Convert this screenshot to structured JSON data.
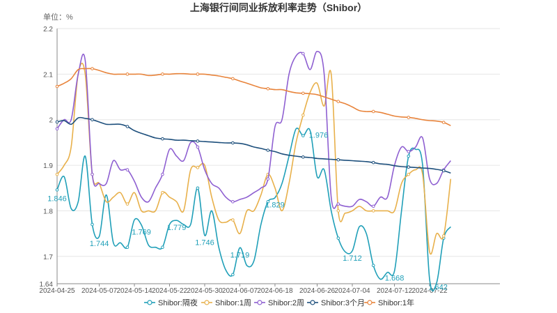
{
  "chart_data": {
    "type": "line",
    "title": "上海银行间同业拆放利率走势（Shibor）",
    "unit_label": "单位：%",
    "ylim": [
      1.64,
      2.2
    ],
    "yticks": [
      "2.2",
      "2.1",
      "2",
      "1.9",
      "1.8",
      "1.7",
      "1.64"
    ],
    "xlim": [
      0,
      63
    ],
    "xticks": [
      {
        "i": 0,
        "label": "2024-04-25"
      },
      {
        "i": 6,
        "label": "2024-05-07"
      },
      {
        "i": 11,
        "label": "2024-05-14"
      },
      {
        "i": 16,
        "label": "2024-05-22"
      },
      {
        "i": 21,
        "label": "2024-05-30"
      },
      {
        "i": 26,
        "label": "2024-06-07"
      },
      {
        "i": 31,
        "label": "2024-06-18"
      },
      {
        "i": 37,
        "label": "2024-06-26"
      },
      {
        "i": 42,
        "label": "2024-07-04"
      },
      {
        "i": 48,
        "label": "2024-07-12"
      },
      {
        "i": 53,
        "label": "2024-07-22"
      }
    ],
    "grid": true,
    "legend_position": "bottom",
    "series": [
      {
        "name": "Shibor:隔夜",
        "color": "#1f9fb8",
        "points": [
          [
            0,
            1.846
          ],
          [
            1,
            1.875
          ],
          [
            2,
            1.805
          ],
          [
            3,
            1.82
          ],
          [
            4,
            1.92
          ],
          [
            5,
            1.77
          ],
          [
            6,
            1.744
          ],
          [
            7,
            1.835
          ],
          [
            8,
            1.73
          ],
          [
            9,
            1.73
          ],
          [
            10,
            1.72
          ],
          [
            11,
            1.78
          ],
          [
            12,
            1.769
          ],
          [
            13,
            1.725
          ],
          [
            14,
            1.72
          ],
          [
            15,
            1.72
          ],
          [
            16,
            1.77
          ],
          [
            17,
            1.779
          ],
          [
            18,
            1.77
          ],
          [
            19,
            1.77
          ],
          [
            20,
            1.85
          ],
          [
            21,
            1.746
          ],
          [
            22,
            1.8
          ],
          [
            23,
            1.72
          ],
          [
            24,
            1.67
          ],
          [
            25,
            1.66
          ],
          [
            26,
            1.719
          ],
          [
            27,
            1.68
          ],
          [
            28,
            1.69
          ],
          [
            29,
            1.77
          ],
          [
            30,
            1.82
          ],
          [
            31,
            1.829
          ],
          [
            32,
            1.86
          ],
          [
            33,
            1.92
          ],
          [
            34,
            1.98
          ],
          [
            35,
            1.965
          ],
          [
            36,
            1.976
          ],
          [
            37,
            1.875
          ],
          [
            38,
            1.89
          ],
          [
            39,
            1.8
          ],
          [
            40,
            1.74
          ],
          [
            41,
            1.71
          ],
          [
            42,
            1.712
          ],
          [
            43,
            1.765
          ],
          [
            44,
            1.75
          ],
          [
            45,
            1.68
          ],
          [
            46,
            1.65
          ],
          [
            47,
            1.665
          ],
          [
            48,
            1.668
          ],
          [
            49,
            1.8
          ],
          [
            50,
            1.92
          ],
          [
            51,
            1.935
          ],
          [
            52,
            1.9
          ],
          [
            53,
            1.65
          ],
          [
            54,
            1.642
          ],
          [
            55,
            1.74
          ],
          [
            56,
            1.765
          ]
        ]
      },
      {
        "name": "Shibor:1周",
        "color": "#e8b04a",
        "points": [
          [
            0,
            1.88
          ],
          [
            1,
            1.9
          ],
          [
            2,
            1.94
          ],
          [
            3,
            2.1
          ],
          [
            4,
            2.1
          ],
          [
            5,
            1.88
          ],
          [
            6,
            1.86
          ],
          [
            7,
            1.82
          ],
          [
            8,
            1.83
          ],
          [
            9,
            1.84
          ],
          [
            10,
            1.815
          ],
          [
            11,
            1.84
          ],
          [
            12,
            1.8
          ],
          [
            13,
            1.8
          ],
          [
            14,
            1.8
          ],
          [
            15,
            1.84
          ],
          [
            16,
            1.83
          ],
          [
            17,
            1.82
          ],
          [
            18,
            1.8
          ],
          [
            19,
            1.89
          ],
          [
            20,
            1.895
          ],
          [
            21,
            1.9
          ],
          [
            22,
            1.83
          ],
          [
            23,
            1.78
          ],
          [
            24,
            1.775
          ],
          [
            25,
            1.78
          ],
          [
            26,
            1.75
          ],
          [
            27,
            1.8
          ],
          [
            28,
            1.8
          ],
          [
            29,
            1.835
          ],
          [
            30,
            1.88
          ],
          [
            31,
            1.85
          ],
          [
            32,
            1.8
          ],
          [
            33,
            1.86
          ],
          [
            34,
            1.95
          ],
          [
            35,
            2.01
          ],
          [
            36,
            2.06
          ],
          [
            37,
            2.08
          ],
          [
            38,
            2.03
          ],
          [
            39,
            2.1
          ],
          [
            40,
            1.8
          ],
          [
            41,
            1.795
          ],
          [
            42,
            1.8
          ],
          [
            43,
            1.81
          ],
          [
            44,
            1.8
          ],
          [
            45,
            1.8
          ],
          [
            46,
            1.8
          ],
          [
            47,
            1.8
          ],
          [
            48,
            1.8
          ],
          [
            49,
            1.86
          ],
          [
            50,
            1.88
          ],
          [
            51,
            1.89
          ],
          [
            52,
            1.88
          ],
          [
            53,
            1.71
          ],
          [
            54,
            1.75
          ],
          [
            55,
            1.745
          ],
          [
            56,
            1.87
          ]
        ]
      },
      {
        "name": "Shibor:2周",
        "color": "#8e5fd1",
        "points": [
          [
            0,
            1.98
          ],
          [
            1,
            2.0
          ],
          [
            2,
            2.0
          ],
          [
            3,
            2.1
          ],
          [
            4,
            2.13
          ],
          [
            5,
            1.88
          ],
          [
            6,
            1.86
          ],
          [
            7,
            1.86
          ],
          [
            8,
            1.91
          ],
          [
            9,
            1.89
          ],
          [
            10,
            1.89
          ],
          [
            11,
            1.865
          ],
          [
            12,
            1.83
          ],
          [
            13,
            1.82
          ],
          [
            14,
            1.85
          ],
          [
            15,
            1.88
          ],
          [
            16,
            1.935
          ],
          [
            17,
            1.92
          ],
          [
            18,
            1.91
          ],
          [
            19,
            1.95
          ],
          [
            20,
            1.94
          ],
          [
            21,
            1.89
          ],
          [
            22,
            1.86
          ],
          [
            23,
            1.85
          ],
          [
            24,
            1.83
          ],
          [
            25,
            1.82
          ],
          [
            26,
            1.825
          ],
          [
            27,
            1.83
          ],
          [
            28,
            1.84
          ],
          [
            29,
            1.85
          ],
          [
            30,
            1.87
          ],
          [
            31,
            1.985
          ],
          [
            32,
            2.0
          ],
          [
            33,
            2.1
          ],
          [
            34,
            2.14
          ],
          [
            35,
            2.145
          ],
          [
            36,
            2.11
          ],
          [
            37,
            2.15
          ],
          [
            38,
            2.1
          ],
          [
            39,
            1.83
          ],
          [
            40,
            1.815
          ],
          [
            41,
            1.81
          ],
          [
            42,
            1.81
          ],
          [
            43,
            1.825
          ],
          [
            44,
            1.82
          ],
          [
            45,
            1.81
          ],
          [
            46,
            1.83
          ],
          [
            47,
            1.83
          ],
          [
            48,
            1.9
          ],
          [
            49,
            1.94
          ],
          [
            50,
            1.93
          ],
          [
            51,
            1.94
          ],
          [
            52,
            1.96
          ],
          [
            53,
            1.87
          ],
          [
            54,
            1.86
          ],
          [
            55,
            1.89
          ],
          [
            56,
            1.91
          ]
        ]
      },
      {
        "name": "Shibor:3个月",
        "color": "#1d4f7c",
        "points": [
          [
            0,
            1.995
          ],
          [
            1,
            1.998
          ],
          [
            2,
            1.99
          ],
          [
            3,
            2.004
          ],
          [
            4,
            2.003
          ],
          [
            5,
            2.0
          ],
          [
            6,
            1.995
          ],
          [
            7,
            1.99
          ],
          [
            8,
            1.99
          ],
          [
            9,
            1.99
          ],
          [
            10,
            1.985
          ],
          [
            11,
            1.976
          ],
          [
            12,
            1.97
          ],
          [
            13,
            1.965
          ],
          [
            14,
            1.96
          ],
          [
            15,
            1.958
          ],
          [
            16,
            1.957
          ],
          [
            17,
            1.955
          ],
          [
            18,
            1.955
          ],
          [
            19,
            1.954
          ],
          [
            20,
            1.953
          ],
          [
            21,
            1.952
          ],
          [
            22,
            1.951
          ],
          [
            23,
            1.95
          ],
          [
            24,
            1.949
          ],
          [
            25,
            1.949
          ],
          [
            26,
            1.948
          ],
          [
            27,
            1.945
          ],
          [
            28,
            1.94
          ],
          [
            29,
            1.937
          ],
          [
            30,
            1.933
          ],
          [
            31,
            1.93
          ],
          [
            32,
            1.925
          ],
          [
            33,
            1.922
          ],
          [
            34,
            1.92
          ],
          [
            35,
            1.918
          ],
          [
            36,
            1.917
          ],
          [
            37,
            1.915
          ],
          [
            38,
            1.914
          ],
          [
            39,
            1.913
          ],
          [
            40,
            1.912
          ],
          [
            41,
            1.911
          ],
          [
            42,
            1.91
          ],
          [
            43,
            1.909
          ],
          [
            44,
            1.908
          ],
          [
            45,
            1.906
          ],
          [
            46,
            1.903
          ],
          [
            47,
            1.902
          ],
          [
            48,
            1.899
          ],
          [
            49,
            1.897
          ],
          [
            50,
            1.896
          ],
          [
            51,
            1.895
          ],
          [
            52,
            1.894
          ],
          [
            53,
            1.893
          ],
          [
            54,
            1.891
          ],
          [
            55,
            1.888
          ],
          [
            56,
            1.883
          ]
        ]
      },
      {
        "name": "Shibor:1年",
        "color": "#e8833a",
        "points": [
          [
            0,
            2.073
          ],
          [
            1,
            2.08
          ],
          [
            2,
            2.09
          ],
          [
            3,
            2.11
          ],
          [
            4,
            2.112
          ],
          [
            5,
            2.112
          ],
          [
            6,
            2.108
          ],
          [
            7,
            2.103
          ],
          [
            8,
            2.1
          ],
          [
            9,
            2.1
          ],
          [
            10,
            2.1
          ],
          [
            11,
            2.1
          ],
          [
            12,
            2.1
          ],
          [
            13,
            2.097
          ],
          [
            14,
            2.098
          ],
          [
            15,
            2.1
          ],
          [
            16,
            2.1
          ],
          [
            17,
            2.101
          ],
          [
            18,
            2.101
          ],
          [
            19,
            2.1
          ],
          [
            20,
            2.1
          ],
          [
            21,
            2.1
          ],
          [
            22,
            2.098
          ],
          [
            23,
            2.096
          ],
          [
            24,
            2.093
          ],
          [
            25,
            2.09
          ],
          [
            26,
            2.085
          ],
          [
            27,
            2.08
          ],
          [
            28,
            2.075
          ],
          [
            29,
            2.07
          ],
          [
            30,
            2.068
          ],
          [
            31,
            2.066
          ],
          [
            32,
            2.066
          ],
          [
            33,
            2.062
          ],
          [
            34,
            2.059
          ],
          [
            35,
            2.058
          ],
          [
            36,
            2.057
          ],
          [
            37,
            2.055
          ],
          [
            38,
            2.05
          ],
          [
            39,
            2.045
          ],
          [
            40,
            2.04
          ],
          [
            41,
            2.035
          ],
          [
            42,
            2.028
          ],
          [
            43,
            2.02
          ],
          [
            44,
            2.018
          ],
          [
            45,
            2.018
          ],
          [
            46,
            2.016
          ],
          [
            47,
            2.012
          ],
          [
            48,
            2.008
          ],
          [
            49,
            2.006
          ],
          [
            50,
            2.005
          ],
          [
            51,
            2.003
          ],
          [
            52,
            2.0
          ],
          [
            53,
            1.998
          ],
          [
            54,
            1.997
          ],
          [
            55,
            1.994
          ],
          [
            56,
            1.987
          ]
        ]
      }
    ],
    "data_labels": [
      {
        "x": 0,
        "y": 1.846,
        "text": "1.846"
      },
      {
        "x": 6,
        "y": 1.744,
        "text": "1.744"
      },
      {
        "x": 12,
        "y": 1.769,
        "text": "1.769"
      },
      {
        "x": 17,
        "y": 1.779,
        "text": "1.779"
      },
      {
        "x": 21,
        "y": 1.746,
        "text": "1.746"
      },
      {
        "x": 26,
        "y": 1.719,
        "text": "1.719"
      },
      {
        "x": 31,
        "y": 1.829,
        "text": "1.829"
      },
      {
        "x": 36,
        "y": 1.976,
        "text": "1.976"
      },
      {
        "x": 42,
        "y": 1.712,
        "text": "1.712"
      },
      {
        "x": 48,
        "y": 1.668,
        "text": "1.668"
      },
      {
        "x": 54,
        "y": 1.642,
        "text": "1.642"
      }
    ]
  }
}
